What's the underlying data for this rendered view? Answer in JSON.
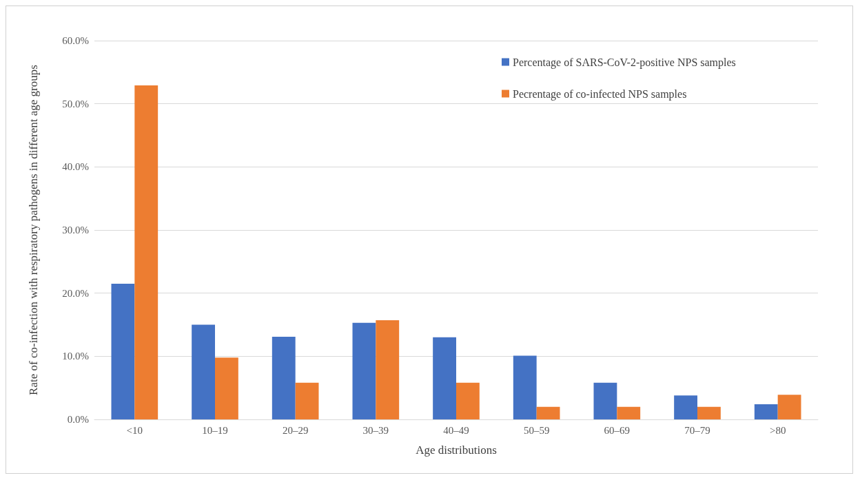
{
  "chart_data": {
    "type": "bar",
    "xlabel": "Age distributions",
    "ylabel": "Rate of co-infection with respiratory pathogens in different age groups",
    "categories": [
      "<10",
      "10–19",
      "20–29",
      "30–39",
      "40–49",
      "50–59",
      "60–69",
      "70–79",
      ">80"
    ],
    "series": [
      {
        "name": "Percentage of SARS-CoV-2-positive NPS samples",
        "color": "#4472c4",
        "values": [
          21.5,
          15.0,
          13.1,
          15.3,
          13.0,
          10.1,
          5.8,
          3.8,
          2.4
        ]
      },
      {
        "name": "Pecrentage of co-infected NPS samples",
        "color": "#ed7d31",
        "values": [
          52.9,
          9.8,
          5.8,
          15.7,
          5.8,
          2.0,
          2.0,
          2.0,
          3.9
        ]
      }
    ],
    "ylim": [
      0,
      60
    ],
    "yticks": [
      {
        "value": 0,
        "label": "0.0%"
      },
      {
        "value": 10,
        "label": "10.0%"
      },
      {
        "value": 20,
        "label": "20.0%"
      },
      {
        "value": 30,
        "label": "30.0%"
      },
      {
        "value": 40,
        "label": "40.0%"
      },
      {
        "value": 50,
        "label": "50.0%"
      },
      {
        "value": 60,
        "label": "60.0%"
      }
    ],
    "grid": "y",
    "legend": "top right"
  }
}
